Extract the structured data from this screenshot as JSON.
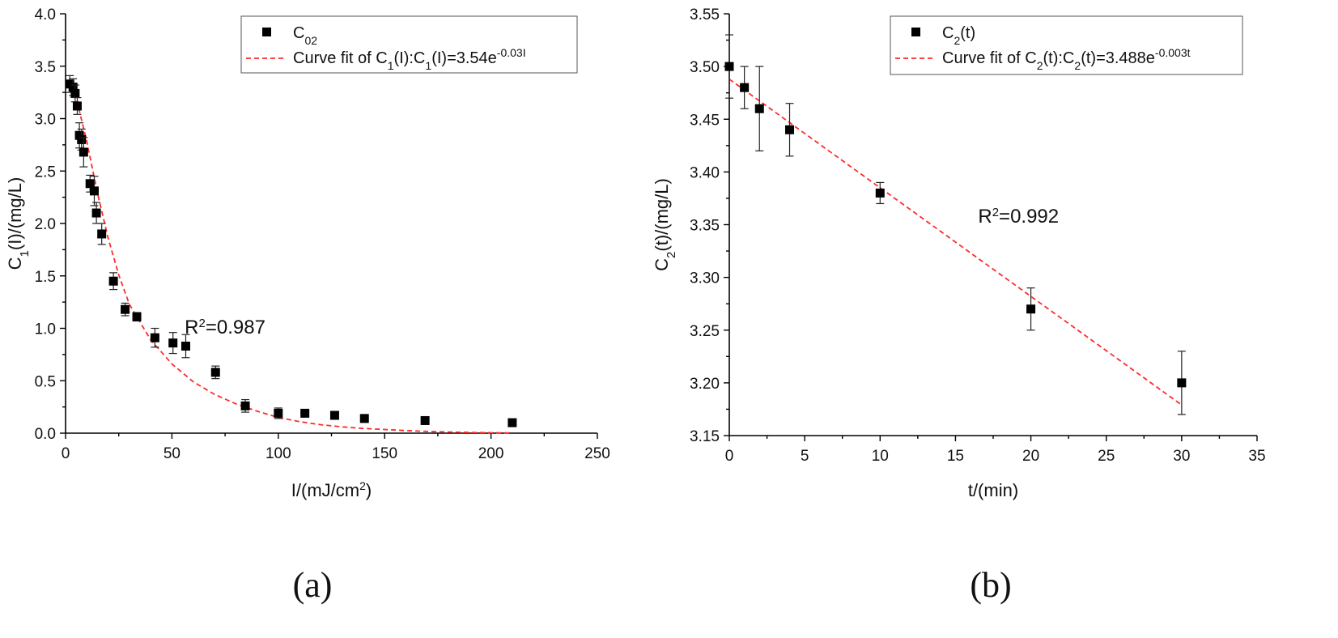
{
  "colors": {
    "marker": "#000000",
    "fit": "#ff2a2a",
    "axis": "#000000"
  },
  "chart_data": [
    {
      "type": "scatter",
      "panel_label": "(a)",
      "xlabel": {
        "main": "I/(mJ/cm",
        "sup": "2",
        "tail": ")"
      },
      "ylabel": {
        "main": "C",
        "sub": "1",
        "tail": "(I)/(mg/L)"
      },
      "xlim": [
        0,
        250
      ],
      "ylim": [
        0,
        4.0
      ],
      "xticks": [
        0,
        50,
        100,
        150,
        200,
        250
      ],
      "xtick_labels": [
        "0",
        "50",
        "100",
        "150",
        "200",
        "250"
      ],
      "yticks": [
        0,
        0.5,
        1.0,
        1.5,
        2.0,
        2.5,
        3.0,
        3.5,
        4.0
      ],
      "ytick_labels": [
        "0.0",
        "0.5",
        "1.0",
        "1.5",
        "2.0",
        "2.5",
        "3.0",
        "3.5",
        "4.0"
      ],
      "legend": {
        "position": "top-right",
        "marker_label": {
          "main": "C",
          "sub": "02"
        },
        "fit_label": {
          "a": "Curve fit of C",
          "a_sub": "1",
          "b": "(I):C",
          "b_sub": "1",
          "c": "(I)=3.54e",
          "sup": "-0.03I"
        }
      },
      "annotation": {
        "base": "R",
        "sup": "2",
        "tail": "=0.987",
        "x": 56,
        "y": 0.95
      },
      "series": [
        {
          "kind": "points",
          "x": [
            2,
            3.5,
            4.5,
            5.5,
            6.5,
            7.5,
            8.5,
            11.5,
            13.5,
            14.5,
            17,
            22.5,
            28,
            33.5,
            42,
            50.5,
            56.5,
            70.5,
            84.5,
            100,
            112.5,
            126.5,
            140.5,
            169,
            210
          ],
          "y": [
            3.33,
            3.3,
            3.24,
            3.12,
            2.84,
            2.8,
            2.68,
            2.38,
            2.31,
            2.1,
            1.9,
            1.45,
            1.18,
            1.11,
            0.91,
            0.86,
            0.83,
            0.58,
            0.26,
            0.19,
            0.19,
            0.17,
            0.14,
            0.12,
            0.1
          ],
          "err": [
            0.08,
            0.08,
            0.08,
            0.08,
            0.12,
            0.1,
            0.14,
            0.08,
            0.14,
            0.1,
            0.1,
            0.08,
            0.06,
            0.04,
            0.09,
            0.1,
            0.11,
            0.06,
            0.06,
            0.05,
            0.03,
            0.03,
            0.03,
            0.02,
            0.02
          ]
        },
        {
          "kind": "fit",
          "x": [
            2,
            5,
            10,
            15,
            20,
            25,
            30,
            40,
            50,
            60,
            70,
            80,
            90,
            100,
            110,
            120,
            130,
            140,
            150,
            160,
            170,
            180,
            190,
            200,
            210
          ],
          "y": [
            3.31,
            3.2,
            2.78,
            2.29,
            1.86,
            1.51,
            1.23,
            0.89,
            0.66,
            0.49,
            0.37,
            0.28,
            0.21,
            0.15,
            0.11,
            0.08,
            0.06,
            0.045,
            0.035,
            0.025,
            0.017,
            0.011,
            0.007,
            0.004,
            0.002
          ]
        }
      ]
    },
    {
      "type": "scatter",
      "panel_label": "(b)",
      "xlabel": {
        "main": "t/(min)",
        "sup": "",
        "tail": ""
      },
      "ylabel": {
        "main": "C",
        "sub": "2",
        "tail": "(t)/(mg/L)"
      },
      "xlim": [
        0,
        35
      ],
      "ylim": [
        3.15,
        3.55
      ],
      "xticks": [
        0,
        5,
        10,
        15,
        20,
        25,
        30,
        35
      ],
      "xtick_labels": [
        "0",
        "5",
        "10",
        "15",
        "20",
        "25",
        "30",
        "35"
      ],
      "yticks": [
        3.15,
        3.2,
        3.25,
        3.3,
        3.35,
        3.4,
        3.45,
        3.5,
        3.55
      ],
      "ytick_labels": [
        "3.15",
        "3.20",
        "3.25",
        "3.30",
        "3.35",
        "3.40",
        "3.45",
        "3.50",
        "3.55"
      ],
      "legend": {
        "position": "top-right",
        "marker_label": {
          "main": "C",
          "sub": "2",
          "tail": "(t)"
        },
        "fit_label": {
          "a": "Curve fit of C",
          "a_sub": "2",
          "b": "(t):C",
          "b_sub": "2",
          "c": "(t)=3.488e",
          "sup": "-0.003t"
        }
      },
      "annotation": {
        "base": "R",
        "sup": "2",
        "tail": "=0.992",
        "x": 16.5,
        "y": 3.352
      },
      "series": [
        {
          "kind": "points",
          "x": [
            0,
            1,
            2,
            4,
            10,
            20,
            30
          ],
          "y": [
            3.5,
            3.48,
            3.46,
            3.44,
            3.38,
            3.27,
            3.2
          ],
          "err": [
            0.03,
            0.02,
            0.04,
            0.025,
            0.01,
            0.02,
            0.03
          ]
        },
        {
          "kind": "fit",
          "x": [
            0,
            30
          ],
          "y": [
            3.488,
            3.179
          ]
        }
      ]
    }
  ]
}
